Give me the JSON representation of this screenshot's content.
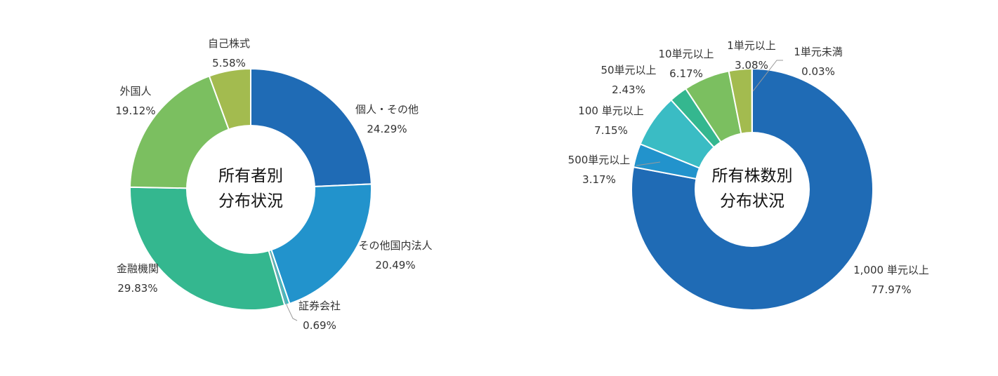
{
  "chart_data": [
    {
      "type": "donut",
      "center_label": [
        "所有者別",
        "分布状況"
      ],
      "unit": "%",
      "slices": [
        {
          "name": "個人・その他",
          "value": 24.29,
          "value_label": "24.29%",
          "color": "#1f6bb5"
        },
        {
          "name": "その他国内法人",
          "value": 20.49,
          "value_label": "20.49%",
          "color": "#2293cc"
        },
        {
          "name": "証券会社",
          "value": 0.69,
          "value_label": "0.69%",
          "color": "#3abcc4"
        },
        {
          "name": "金融機関",
          "value": 29.83,
          "value_label": "29.83%",
          "color": "#34b78f"
        },
        {
          "name": "外国人",
          "value": 19.12,
          "value_label": "19.12%",
          "color": "#7bbf60"
        },
        {
          "name": "自己株式",
          "value": 5.58,
          "value_label": "5.58%",
          "color": "#a3bb4f"
        }
      ]
    },
    {
      "type": "donut",
      "center_label": [
        "所有株数別",
        "分布状況"
      ],
      "unit": "%",
      "slices": [
        {
          "name": "1,000 単元以上",
          "value": 77.97,
          "value_label": "77.97%",
          "color": "#1f6bb5"
        },
        {
          "name": "500単元以上",
          "value": 3.17,
          "value_label": "3.17%",
          "color": "#2293cc"
        },
        {
          "name": "100 単元以上",
          "value": 7.15,
          "value_label": "7.15%",
          "color": "#3abcc4"
        },
        {
          "name": "50単元以上",
          "value": 2.43,
          "value_label": "2.43%",
          "color": "#34b78f"
        },
        {
          "name": "10単元以上",
          "value": 6.17,
          "value_label": "6.17%",
          "color": "#7bbf60"
        },
        {
          "name": "1単元以上",
          "value": 3.08,
          "value_label": "3.08%",
          "color": "#a3bb4f"
        },
        {
          "name": "1単元未満",
          "value": 0.03,
          "value_label": "0.03%",
          "color": "#6f6f6f"
        }
      ]
    }
  ]
}
